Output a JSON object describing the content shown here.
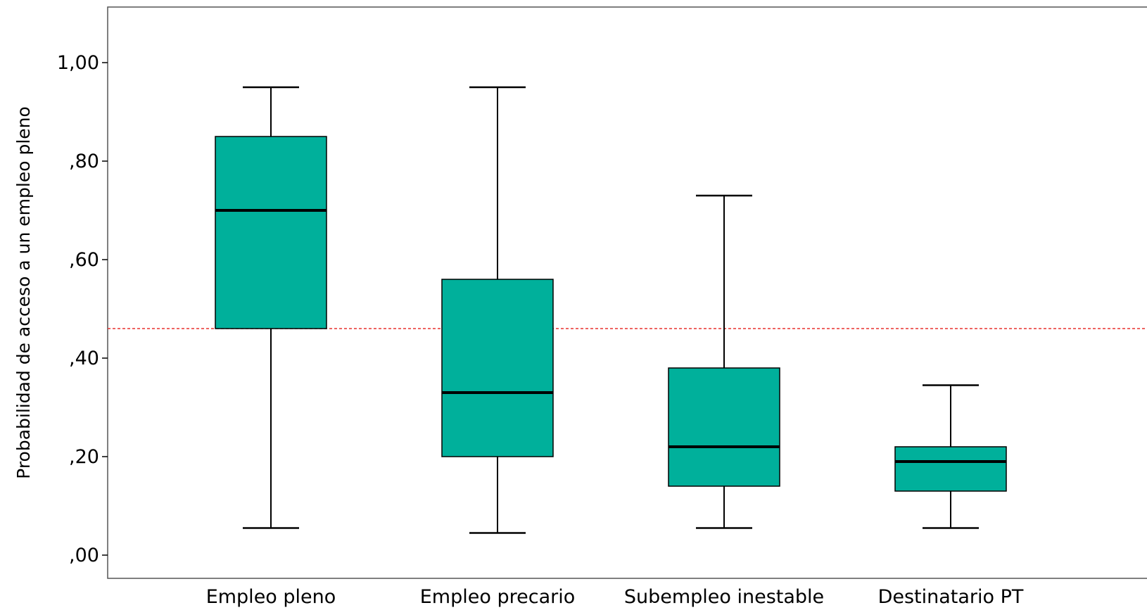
{
  "chart_data": {
    "type": "boxplot",
    "title": "",
    "xlabel": "",
    "ylabel": "Probabilidad de acceso a un empleo pleno",
    "ylim": [
      0,
      1.1
    ],
    "y_ticks": [
      {
        "value": 0.0,
        "label": ",00"
      },
      {
        "value": 0.2,
        "label": ",20"
      },
      {
        "value": 0.4,
        "label": ",40"
      },
      {
        "value": 0.6,
        "label": ",60"
      },
      {
        "value": 0.8,
        "label": ",80"
      },
      {
        "value": 1.0,
        "label": "1,00"
      }
    ],
    "categories": [
      "Empleo pleno",
      "Empleo precario",
      "Subempleo inestable",
      "Destinatario PT"
    ],
    "boxes": [
      {
        "category": "Empleo pleno",
        "whisker_low": 0.055,
        "q1": 0.46,
        "median": 0.7,
        "q3": 0.85,
        "whisker_high": 0.95
      },
      {
        "category": "Empleo precario",
        "whisker_low": 0.045,
        "q1": 0.2,
        "median": 0.33,
        "q3": 0.56,
        "whisker_high": 0.95
      },
      {
        "category": "Subempleo inestable",
        "whisker_low": 0.055,
        "q1": 0.14,
        "median": 0.22,
        "q3": 0.38,
        "whisker_high": 0.73
      },
      {
        "category": "Destinatario PT",
        "whisker_low": 0.055,
        "q1": 0.13,
        "median": 0.19,
        "q3": 0.22,
        "whisker_high": 0.345
      }
    ],
    "reference_line": {
      "value": 0.46,
      "style": "dashed"
    },
    "grid": false,
    "colors": {
      "box_fill": "#00B09B",
      "reference_line": "#E8312F",
      "stroke": "#000000"
    }
  }
}
